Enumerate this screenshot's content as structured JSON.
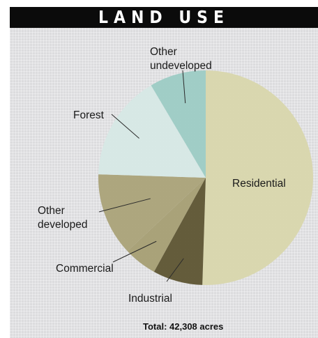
{
  "chart_data": {
    "type": "pie",
    "title": "LAND USE",
    "slices": [
      {
        "label": "Residential",
        "value": 50.5,
        "color": "#d8d6ac"
      },
      {
        "label": "Industrial",
        "value": 7.5,
        "color": "#5d5432"
      },
      {
        "label": "Commercial",
        "value": 5.0,
        "color": "#a59e73"
      },
      {
        "label": "Other developed",
        "label_lines": [
          "Other",
          "developed"
        ],
        "value": 12.5,
        "color": "#aaa278"
      },
      {
        "label": "Forest",
        "value": 16.0,
        "color": "#d6e8e5"
      },
      {
        "label": "Other undeveloped",
        "label_lines": [
          "Other",
          "undeveloped"
        ],
        "value": 8.5,
        "color": "#9ccbc4"
      }
    ],
    "unit": "percent (estimated)",
    "total_text": "Total: 42,308 acres"
  }
}
